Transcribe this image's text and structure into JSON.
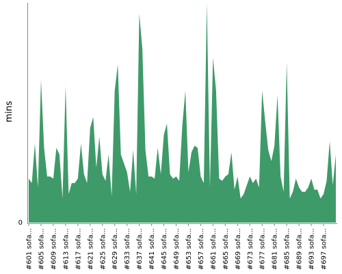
{
  "chart_data": {
    "type": "area",
    "title": "",
    "xlabel": "",
    "ylabel": "mins",
    "ylim": [
      0,
      100
    ],
    "grid": false,
    "legend": "none",
    "color": "#3f9a6a",
    "y_tick_labels": [
      "0"
    ],
    "x_tick_labels": [
      "#601 sofa...",
      "#605 sofa...",
      "#609 sofa...",
      "#613 sofa...",
      "#617 sofa...",
      "#621 sofa...",
      "#625 sofa...",
      "#629 sofa...",
      "#633 sofa...",
      "#637 sofa...",
      "#641 sofa...",
      "#645 sofa...",
      "#649 sofa...",
      "#653 sofa...",
      "#657 sofa...",
      "#661 sofa...",
      "#665 sofa...",
      "#669 sofa...",
      "#673 sofa...",
      "#677 sofa...",
      "#681 sofa...",
      "#685 sofa...",
      "#689 sofa...",
      "#693 sofa...",
      "#697 sofa..."
    ],
    "series": [
      {
        "values": [
          20,
          18,
          36,
          16,
          65,
          34,
          21,
          21,
          20,
          34,
          31,
          11,
          62,
          13,
          18,
          18,
          20,
          36,
          22,
          18,
          43,
          48,
          25,
          39,
          22,
          19,
          31,
          12,
          60,
          72,
          31,
          27,
          23,
          14,
          33,
          13,
          95,
          79,
          33,
          21,
          21,
          20,
          34,
          22,
          40,
          45,
          22,
          20,
          21,
          19,
          44,
          60,
          23,
          32,
          35,
          34,
          21,
          18,
          100,
          16,
          75,
          60,
          20,
          19,
          21,
          22,
          32,
          15,
          21,
          11,
          13,
          17,
          21,
          18,
          20,
          16,
          60,
          46,
          33,
          28,
          35,
          58,
          21,
          14,
          73,
          11,
          14,
          20,
          16,
          14,
          14,
          16,
          20,
          15,
          15,
          11,
          13,
          19,
          37,
          17,
          31
        ]
      }
    ]
  }
}
